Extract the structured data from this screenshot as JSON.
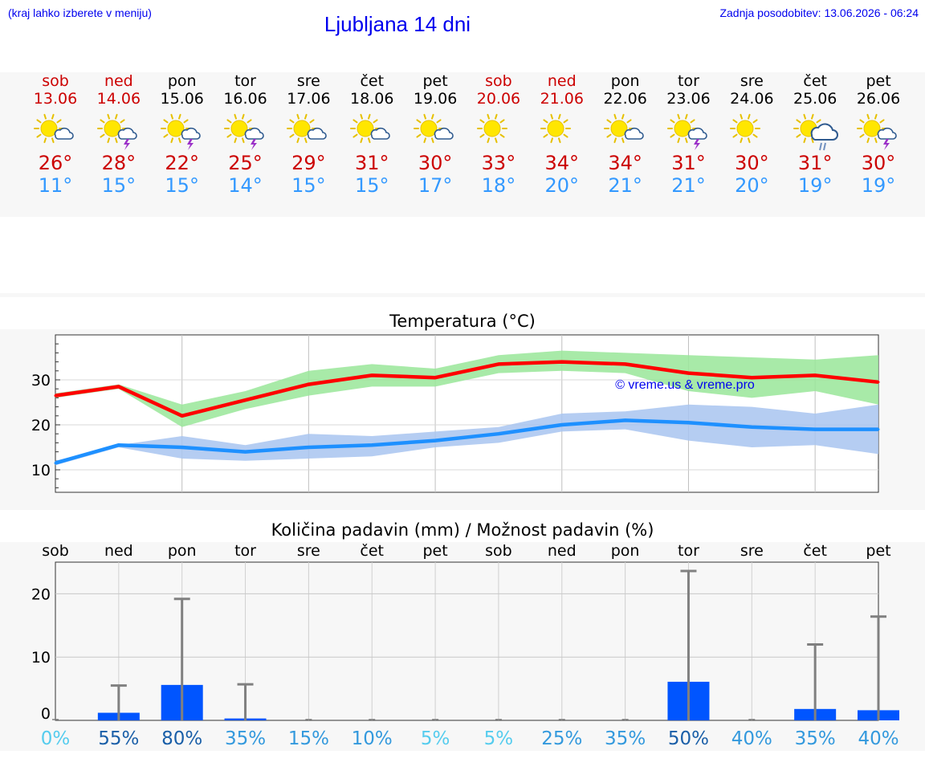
{
  "header": {
    "hint": "(kraj lahko izberete v meniju)",
    "title": "Ljubljana 14 dni",
    "updated": "Zadnja posodobitev: 13.06.2026 - 06:24"
  },
  "colors": {
    "link": "#0000ee",
    "weekend": "#cc0000",
    "tmax": "#cc0000",
    "tmin": "#3399ff"
  },
  "days": [
    {
      "name": "sob",
      "date": "13.06",
      "weekend": true,
      "icon": "sun-cloud-icon",
      "tmax": "26°",
      "tmin": "11°"
    },
    {
      "name": "ned",
      "date": "14.06",
      "weekend": true,
      "icon": "sun-storm-icon",
      "tmax": "28°",
      "tmin": "15°"
    },
    {
      "name": "pon",
      "date": "15.06",
      "weekend": false,
      "icon": "sun-storm-icon",
      "tmax": "22°",
      "tmin": "15°"
    },
    {
      "name": "tor",
      "date": "16.06",
      "weekend": false,
      "icon": "sun-storm-icon",
      "tmax": "25°",
      "tmin": "14°"
    },
    {
      "name": "sre",
      "date": "17.06",
      "weekend": false,
      "icon": "sun-cloud-icon",
      "tmax": "29°",
      "tmin": "15°"
    },
    {
      "name": "čet",
      "date": "18.06",
      "weekend": false,
      "icon": "sun-cloud-icon",
      "tmax": "31°",
      "tmin": "15°"
    },
    {
      "name": "pet",
      "date": "19.06",
      "weekend": false,
      "icon": "sun-cloud-icon",
      "tmax": "30°",
      "tmin": "17°"
    },
    {
      "name": "sob",
      "date": "20.06",
      "weekend": true,
      "icon": "sun-icon",
      "tmax": "33°",
      "tmin": "18°"
    },
    {
      "name": "ned",
      "date": "21.06",
      "weekend": true,
      "icon": "sun-icon",
      "tmax": "34°",
      "tmin": "20°"
    },
    {
      "name": "pon",
      "date": "22.06",
      "weekend": false,
      "icon": "sun-cloud-icon",
      "tmax": "34°",
      "tmin": "21°"
    },
    {
      "name": "tor",
      "date": "23.06",
      "weekend": false,
      "icon": "sun-storm-icon",
      "tmax": "31°",
      "tmin": "21°"
    },
    {
      "name": "sre",
      "date": "24.06",
      "weekend": false,
      "icon": "sun-icon",
      "tmax": "30°",
      "tmin": "20°"
    },
    {
      "name": "čet",
      "date": "25.06",
      "weekend": false,
      "icon": "sun-rain-icon",
      "tmax": "31°",
      "tmin": "19°"
    },
    {
      "name": "pet",
      "date": "26.06",
      "weekend": false,
      "icon": "sun-storm-icon",
      "tmax": "30°",
      "tmin": "19°"
    }
  ],
  "chart_data": [
    {
      "type": "line",
      "title": "Temperatura (°C)",
      "x_days": [
        "sob",
        "ned",
        "pon",
        "tor",
        "sre",
        "čet",
        "pet",
        "sob",
        "ned",
        "pon",
        "tor",
        "sre",
        "čet",
        "pet"
      ],
      "ylim": [
        5,
        40
      ],
      "yticks": [
        10,
        20,
        30
      ],
      "grid": true,
      "watermark": "© vreme.us & vreme.pro",
      "series": [
        {
          "color": "#ff0000",
          "x": [
            0,
            1,
            2,
            3,
            4,
            5,
            6,
            7,
            8,
            9,
            10,
            11,
            12,
            13
          ],
          "values": [
            26.5,
            28.5,
            22,
            25.5,
            29,
            31,
            30.5,
            33.5,
            34,
            33.5,
            31.5,
            30.5,
            31,
            29.5
          ],
          "band_low": [
            26,
            28,
            19.5,
            23.5,
            26.5,
            28.5,
            28.5,
            31.5,
            32,
            31.5,
            27.5,
            26,
            27.5,
            24.5
          ],
          "band_high": [
            27,
            29,
            24.5,
            27.5,
            32,
            33.5,
            32.5,
            35.5,
            36.5,
            36,
            35.5,
            35,
            34.5,
            35.5
          ],
          "band_color": "#99e699"
        },
        {
          "color": "#1e90ff",
          "x": [
            0,
            1,
            2,
            3,
            4,
            5,
            6,
            7,
            8,
            9,
            10,
            11,
            12,
            13
          ],
          "values": [
            11.5,
            15.5,
            15,
            14,
            15,
            15.5,
            16.5,
            18,
            20,
            21,
            20.5,
            19.5,
            19,
            19
          ],
          "band_low": [
            11,
            15,
            12.5,
            12,
            12.5,
            13,
            15,
            16,
            18.5,
            19,
            16.5,
            15,
            15.5,
            13.5
          ],
          "band_high": [
            12,
            15.5,
            17.5,
            15.5,
            18,
            17.5,
            18.5,
            19.5,
            22.5,
            23,
            24.5,
            24,
            22.5,
            24.5
          ],
          "band_color": "#a8c4f0"
        }
      ]
    },
    {
      "type": "bar",
      "title": "Količina padavin (mm) / Možnost padavin (%)",
      "categories": [
        "sob",
        "ned",
        "pon",
        "tor",
        "sre",
        "čet",
        "pet",
        "sob",
        "ned",
        "pon",
        "tor",
        "sre",
        "čet",
        "pet"
      ],
      "ylim": [
        0,
        25
      ],
      "yticks": [
        0,
        10,
        20
      ],
      "grid": true,
      "bar_color": "#0055ff",
      "errbar_color": "#808080",
      "values": [
        0,
        1.2,
        5.6,
        0.3,
        0,
        0,
        0,
        0,
        0,
        0,
        6.1,
        0,
        1.8,
        1.6
      ],
      "err_high": [
        0,
        5.5,
        19.2,
        5.7,
        0,
        0,
        0,
        0,
        0,
        0,
        23.6,
        0,
        12.0,
        16.4
      ],
      "probability": [
        "0%",
        "55%",
        "80%",
        "35%",
        "15%",
        "10%",
        "5%",
        "5%",
        "25%",
        "35%",
        "50%",
        "40%",
        "35%",
        "40%"
      ],
      "probability_colors": [
        "#55ccee",
        "#1a5fa8",
        "#1a5fa8",
        "#3399dd",
        "#3399dd",
        "#3399dd",
        "#55ccee",
        "#55ccee",
        "#3399dd",
        "#3399dd",
        "#1a5fa8",
        "#3399dd",
        "#3399dd",
        "#3399dd"
      ]
    }
  ]
}
